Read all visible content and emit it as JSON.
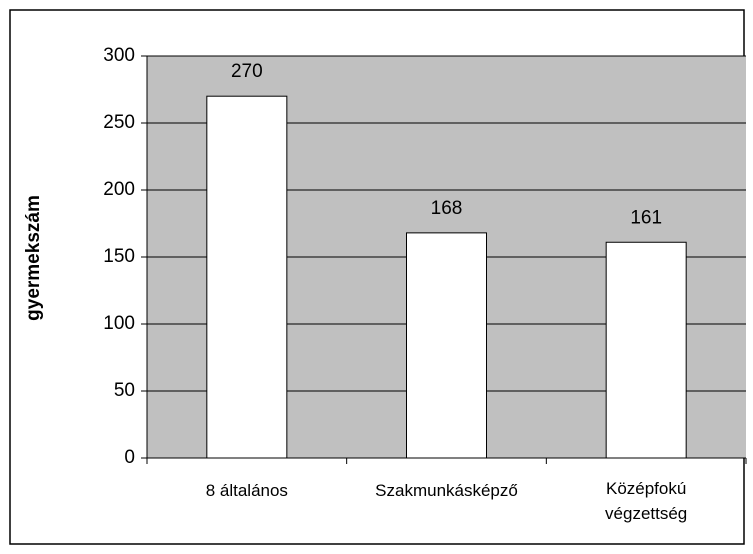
{
  "chart_data": {
    "type": "bar",
    "y_label": "gyermekszám",
    "categories": [
      "8 általános",
      "Szakmunkásképző",
      "Középfokú végzettség"
    ],
    "values": [
      270,
      168,
      161
    ],
    "color": "#ffffff",
    "plot_background": "#c0c0c0",
    "ylim": [
      0,
      300
    ],
    "yticks": [
      0,
      50,
      100,
      150,
      200,
      250,
      300
    ],
    "grid": true
  }
}
